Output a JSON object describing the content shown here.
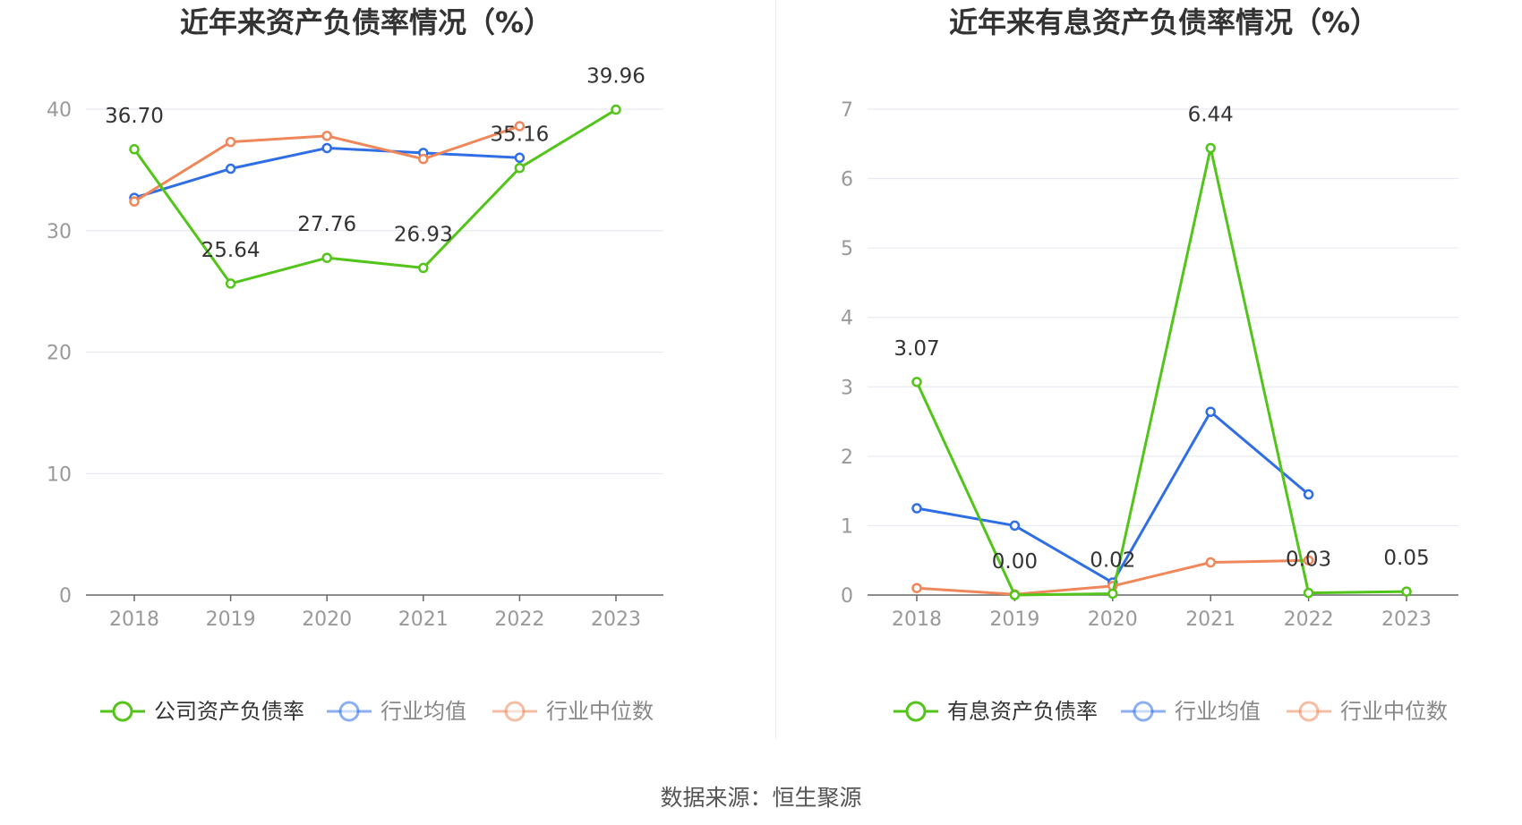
{
  "source_label": "数据来源：恒生聚源",
  "colors": {
    "company": "#52c41a",
    "average": "#2f6ee5",
    "median": "#f0875a",
    "grid": "#e3e6f0",
    "axis": "#666666",
    "tick_text": "#999999"
  },
  "chart_data": [
    {
      "type": "line",
      "title": "近年来资产负债率情况（%）",
      "categories": [
        "2018",
        "2019",
        "2020",
        "2021",
        "2022",
        "2023"
      ],
      "ylim": [
        0,
        40
      ],
      "yticks": [
        "0",
        "10",
        "20",
        "30",
        "40"
      ],
      "grid": true,
      "legend_position": "bottom",
      "series": [
        {
          "name": "公司资产负债率",
          "color": "#52c41a",
          "values": [
            36.7,
            25.64,
            27.76,
            26.93,
            35.16,
            39.96
          ],
          "labels": [
            "36.70",
            "25.64",
            "27.76",
            "26.93",
            "35.16",
            "39.96"
          ]
        },
        {
          "name": "行业均值",
          "color": "#2f6ee5",
          "values": [
            32.7,
            35.1,
            36.8,
            36.4,
            36.0,
            null
          ]
        },
        {
          "name": "行业中位数",
          "color": "#f0875a",
          "values": [
            32.4,
            37.3,
            37.8,
            35.9,
            38.6,
            null
          ]
        }
      ]
    },
    {
      "type": "line",
      "title": "近年来有息资产负债率情况（%）",
      "categories": [
        "2018",
        "2019",
        "2020",
        "2021",
        "2022",
        "2023"
      ],
      "ylim": [
        0,
        7
      ],
      "yticks": [
        "0",
        "1",
        "2",
        "3",
        "4",
        "5",
        "6",
        "7"
      ],
      "grid": true,
      "legend_position": "bottom",
      "series": [
        {
          "name": "有息资产负债率",
          "color": "#52c41a",
          "values": [
            3.07,
            0.0,
            0.02,
            6.44,
            0.03,
            0.05
          ],
          "labels": [
            "3.07",
            "0.00",
            "0.02",
            "6.44",
            "0.03",
            "0.05"
          ]
        },
        {
          "name": "行业均值",
          "color": "#2f6ee5",
          "values": [
            1.25,
            1.0,
            0.18,
            2.64,
            1.45,
            null
          ]
        },
        {
          "name": "行业中位数",
          "color": "#f0875a",
          "values": [
            0.1,
            0.01,
            0.13,
            0.47,
            0.5,
            null
          ]
        }
      ]
    }
  ]
}
